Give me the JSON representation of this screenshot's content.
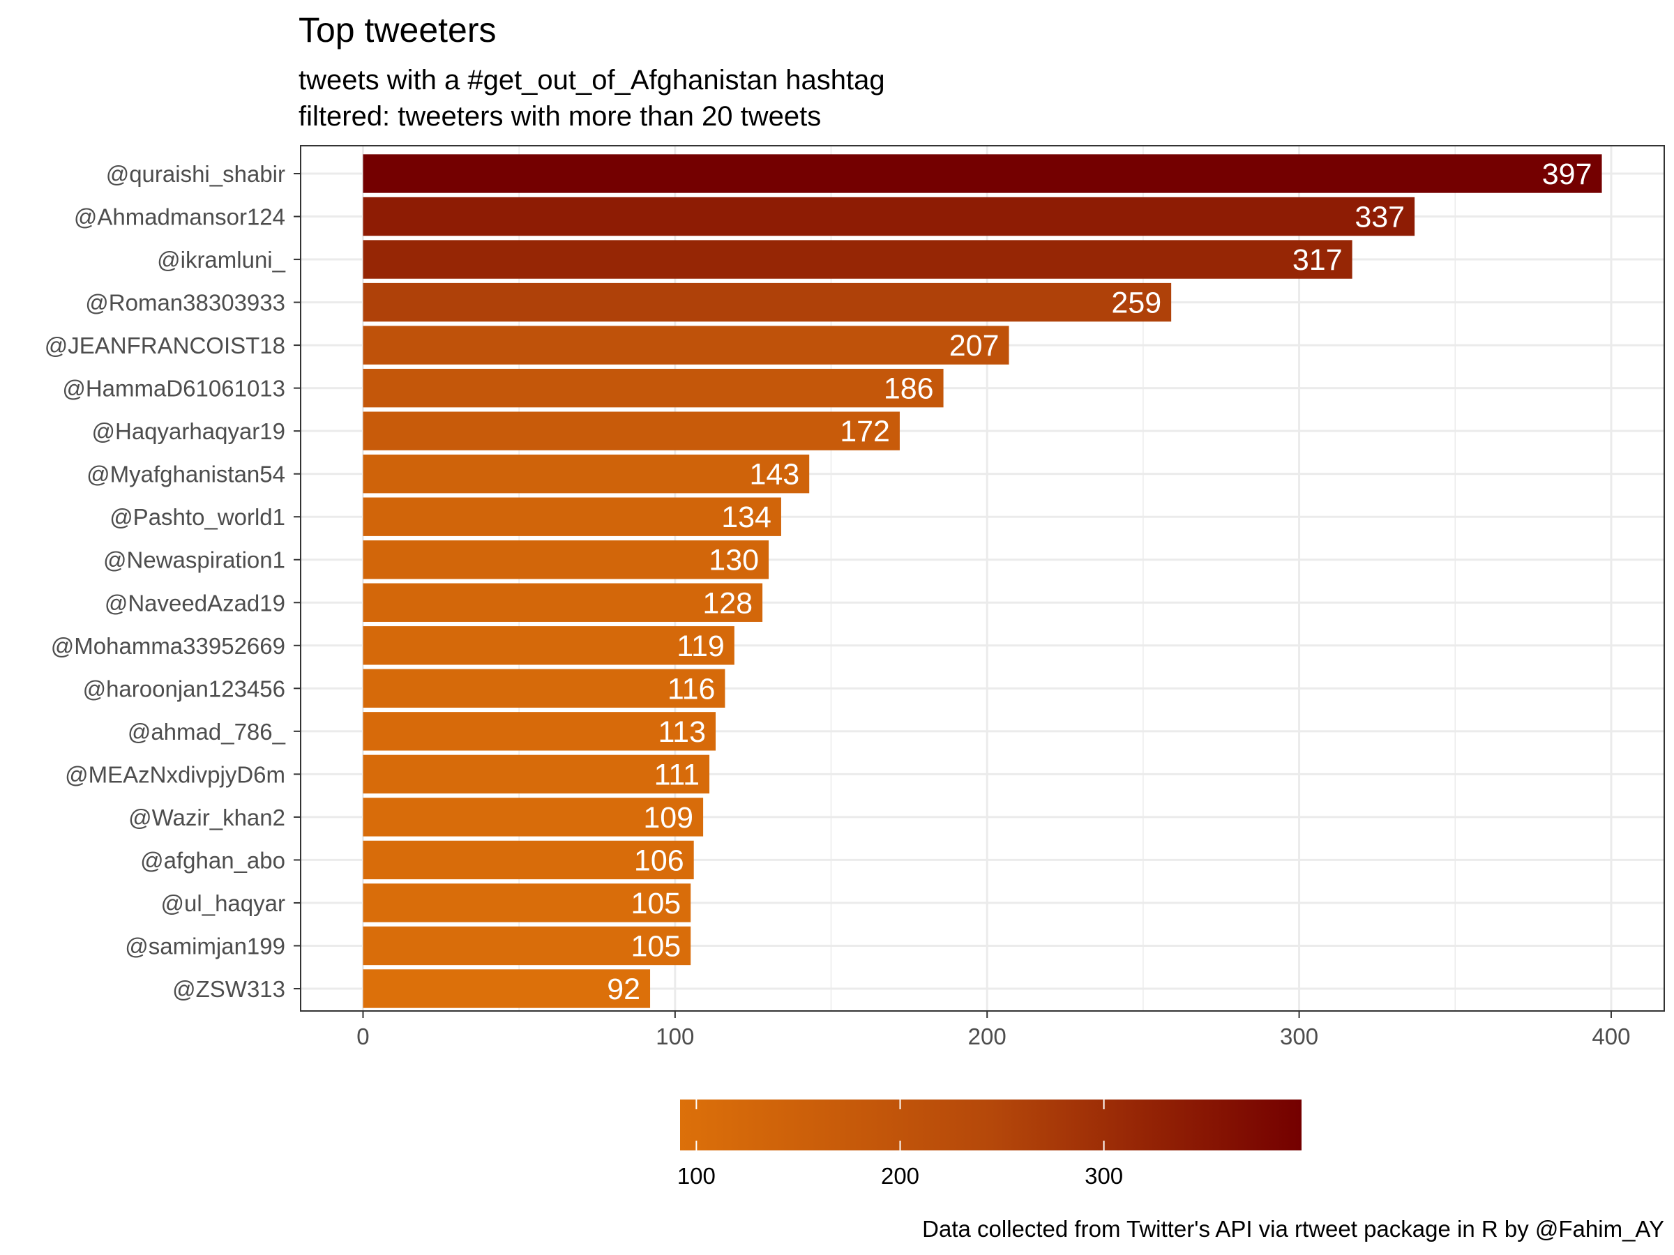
{
  "chart_data": {
    "type": "bar",
    "orientation": "horizontal",
    "title": "Top tweeters",
    "subtitle_lines": [
      "tweets with a #get_out_of_Afghanistan hashtag",
      "filtered: tweeters with more than 20 tweets"
    ],
    "caption": "Data collected from Twitter's API via rtweet package in R by @Fahim_AY",
    "categories": [
      "@quraishi_shabir",
      "@Ahmadmansor124",
      "@ikramluni_",
      "@Roman38303933",
      "@JEANFRANCOIST18",
      "@HammaD61061013",
      "@Haqyarhaqyar19",
      "@Myafghanistan54",
      "@Pashto_world1",
      "@Newaspiration1",
      "@NaveedAzad19",
      "@Mohamma33952669",
      "@haroonjan123456",
      "@ahmad_786_",
      "@MEAzNxdivpjyD6m",
      "@Wazir_khan2",
      "@afghan_abo",
      "@ul_haqyar",
      "@samimjan199",
      "@ZSW313"
    ],
    "values": [
      397,
      337,
      317,
      259,
      207,
      186,
      172,
      143,
      134,
      130,
      128,
      119,
      116,
      113,
      111,
      109,
      106,
      105,
      105,
      92
    ],
    "data_labels": [
      "397",
      "337",
      "317",
      "259",
      "207",
      "186",
      "172",
      "143",
      "134",
      "130",
      "128",
      "119",
      "116",
      "113",
      "111",
      "109",
      "106",
      "105",
      "105",
      "92"
    ],
    "xlim": [
      -20,
      417
    ],
    "x_ticks": [
      0,
      100,
      200,
      300,
      400
    ],
    "x_tick_labels": [
      "0",
      "100",
      "200",
      "300",
      "400"
    ],
    "grid": true,
    "legend": {
      "type": "colorbar",
      "placement": "bottom",
      "range": [
        92,
        397
      ],
      "ticks": [
        100,
        200,
        300
      ],
      "tick_labels": [
        "100",
        "200",
        "300"
      ]
    },
    "colors": {
      "low": "#dc700a",
      "mid": "#b5480a",
      "high": "#740000",
      "grid": "#ebebeb",
      "panel_border": "#333333"
    }
  }
}
